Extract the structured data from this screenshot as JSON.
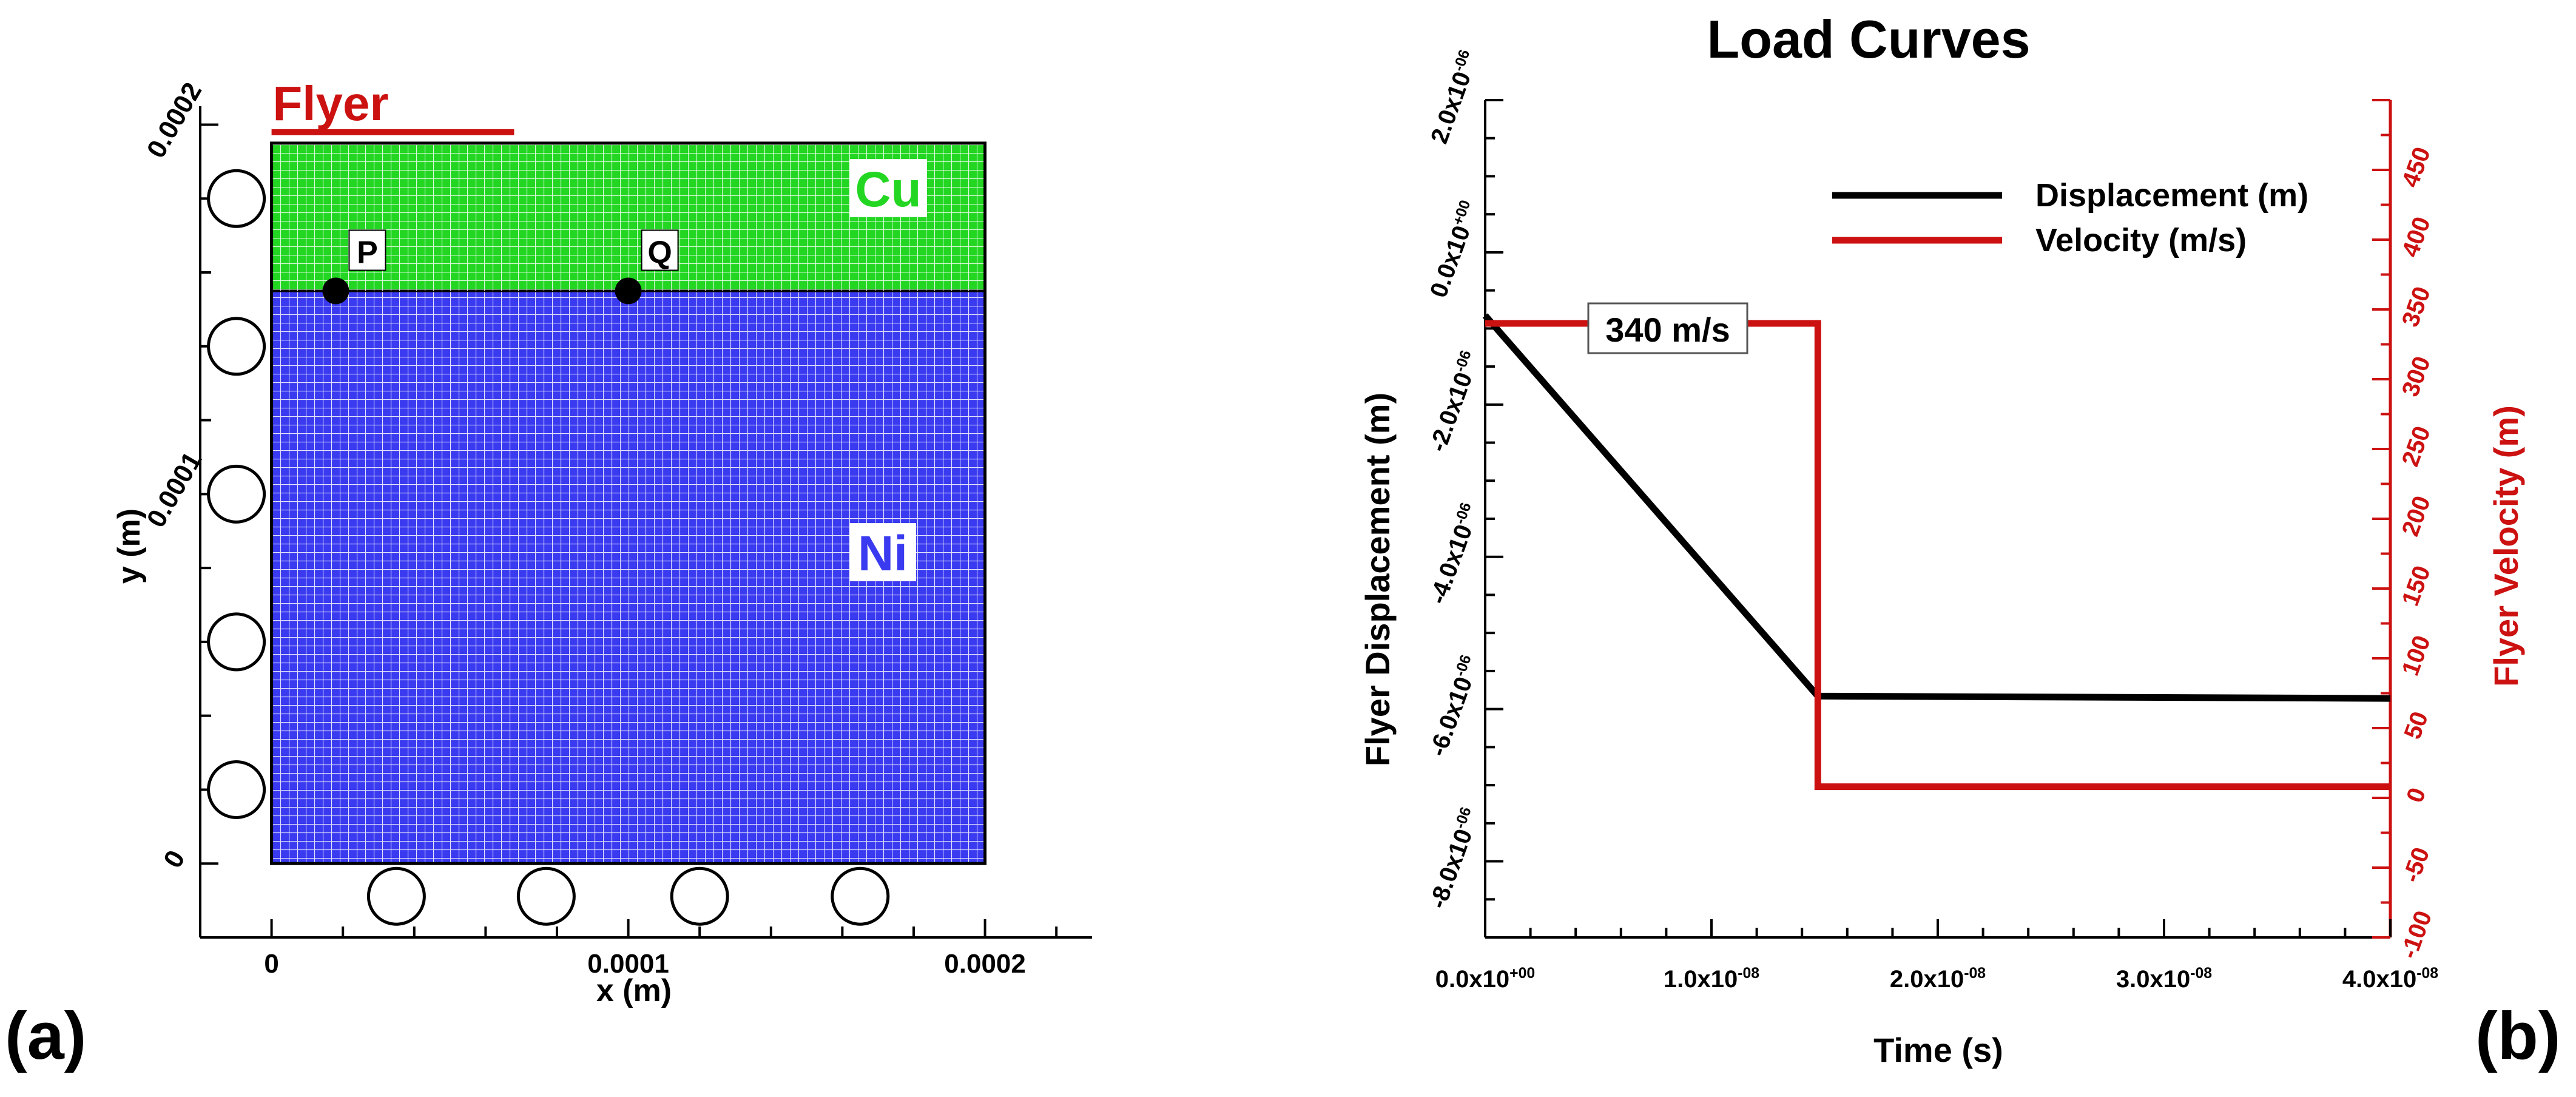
{
  "panel_a": {
    "label": "(a)",
    "flyer_label": "Flyer",
    "cu_label": "Cu",
    "ni_label": "Ni",
    "point_p": "P",
    "point_q": "Q",
    "colors": {
      "cu": "#22d622",
      "ni": "#3a3af0",
      "flyer": "#cc1111",
      "grid": "#ffffff"
    }
  },
  "panel_b": {
    "label": "(b)",
    "annotation": "340 m/s",
    "colors": {
      "displacement": "#000000",
      "velocity": "#cc1111"
    }
  },
  "chart_data": [
    {
      "type": "mesh",
      "title": "",
      "xlabel": "x (m)",
      "ylabel": "y (m)",
      "xlim": [
        -2e-05,
        0.00023
      ],
      "ylim": [
        -2e-05,
        0.000205
      ],
      "xticks": [
        {
          "value": 0,
          "label": "0"
        },
        {
          "value": 0.0001,
          "label": "0.0001"
        },
        {
          "value": 0.0002,
          "label": "0.0002"
        }
      ],
      "yticks": [
        {
          "value": 0,
          "label": "0"
        },
        {
          "value": 0.0001,
          "label": "0.0001"
        },
        {
          "value": 0.0002,
          "label": "0.0002"
        }
      ],
      "regions": [
        {
          "name": "Ni",
          "x": [
            0,
            0.0002
          ],
          "y": [
            0,
            0.000155
          ]
        },
        {
          "name": "Cu",
          "x": [
            0,
            0.0002
          ],
          "y": [
            0.000155,
            0.000195
          ]
        }
      ],
      "flyer_x": [
        0,
        6.8e-05
      ],
      "points": [
        {
          "name": "P",
          "x": 1.8e-05,
          "y": 0.000155
        },
        {
          "name": "Q",
          "x": 0.0001,
          "y": 0.000155
        }
      ],
      "left_rollers_y": [
        0.00018,
        0.00014,
        0.0001,
        6e-05,
        2e-05
      ],
      "bottom_rollers_x": [
        3.5e-05,
        7.7e-05,
        0.00012,
        0.000165
      ]
    },
    {
      "type": "line",
      "title": "Load Curves",
      "xlabel": "Time (s)",
      "ylabel": "Flyer Displacement (m)",
      "ylabel_right": "Flyer Velocity (m)",
      "xlim": [
        0,
        4e-08
      ],
      "ylim": [
        -9e-06,
        2e-06
      ],
      "ylim_right": [
        -100,
        500
      ],
      "xticks": [
        {
          "value": 0,
          "label": "0.0x10+00"
        },
        {
          "value": 1e-08,
          "label": "1.0x10-08"
        },
        {
          "value": 2e-08,
          "label": "2.0x10-08"
        },
        {
          "value": 3e-08,
          "label": "3.0x10-08"
        },
        {
          "value": 4e-08,
          "label": "4.0x10-08"
        }
      ],
      "yticks": [
        {
          "value": 2e-06,
          "label": "2.0x10-06"
        },
        {
          "value": 0,
          "label": "0.0x10+00"
        },
        {
          "value": -2e-06,
          "label": "-2.0x10-06"
        },
        {
          "value": -4e-06,
          "label": "-4.0x10-06"
        },
        {
          "value": -6e-06,
          "label": "-6.0x10-06"
        },
        {
          "value": -8e-06,
          "label": "-8.0x10-06"
        }
      ],
      "yticks_right": [
        {
          "value": 450,
          "label": "450"
        },
        {
          "value": 400,
          "label": "400"
        },
        {
          "value": 350,
          "label": "350"
        },
        {
          "value": 300,
          "label": "300"
        },
        {
          "value": 250,
          "label": "250"
        },
        {
          "value": 200,
          "label": "200"
        },
        {
          "value": 150,
          "label": "150"
        },
        {
          "value": 100,
          "label": "100"
        },
        {
          "value": 50,
          "label": "50"
        },
        {
          "value": 0,
          "label": "0"
        },
        {
          "value": -50,
          "label": "-50"
        },
        {
          "value": -100,
          "label": "-100"
        }
      ],
      "legend_position": "top-right",
      "series": [
        {
          "name": "Displacement (m)",
          "axis": "left",
          "x": [
            0,
            1.47e-08,
            4e-08
          ],
          "y": [
            -8.3e-07,
            -5.83e-06,
            -5.86e-06
          ]
        },
        {
          "name": "Velocity (m/s)",
          "axis": "right",
          "x": [
            0,
            1.47e-08,
            1.47e-08,
            4e-08
          ],
          "y": [
            340,
            340,
            8,
            8
          ]
        }
      ]
    }
  ]
}
